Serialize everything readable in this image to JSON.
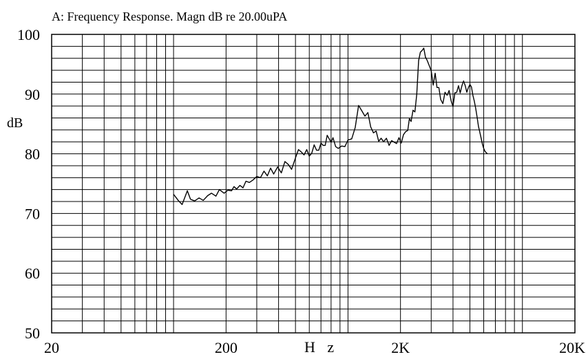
{
  "chart_data": {
    "type": "line",
    "title": "A: Frequency Response. Magn dB re 20.00uPA",
    "xlabel": "H z",
    "ylabel": "dB",
    "xscale": "log",
    "xlim": [
      20,
      20000
    ],
    "ylim": [
      50,
      100
    ],
    "grid": true,
    "x_tick_labels": [
      {
        "value": 20,
        "label": "20"
      },
      {
        "value": 200,
        "label": "200"
      },
      {
        "value": 2000,
        "label": "2K"
      },
      {
        "value": 20000,
        "label": "20K"
      }
    ],
    "y_tick_labels": [
      {
        "value": 100,
        "label": "100"
      },
      {
        "value": 90,
        "label": "90"
      },
      {
        "value": 80,
        "label": "80"
      },
      {
        "value": 70,
        "label": "70"
      },
      {
        "value": 60,
        "label": "60"
      },
      {
        "value": 50,
        "label": "50"
      }
    ],
    "series": [
      {
        "x": [
          100,
          107,
          112,
          120,
          125,
          132,
          140,
          148,
          157,
          165,
          175,
          183,
          195,
          205,
          215,
          222,
          230,
          240,
          250,
          260,
          272,
          285,
          300,
          315,
          330,
          345,
          360,
          375,
          395,
          415,
          435,
          455,
          475,
          500,
          520,
          540,
          560,
          580,
          600,
          620,
          640,
          660,
          680,
          700,
          720,
          740,
          760,
          780,
          800,
          820,
          850,
          880,
          920,
          960,
          1000,
          1050,
          1100,
          1150,
          1200,
          1250,
          1300,
          1350,
          1400,
          1450,
          1500,
          1550,
          1600,
          1660,
          1720,
          1780,
          1850,
          1900,
          1960,
          2020,
          2080,
          2140,
          2200,
          2250,
          2300,
          2360,
          2420,
          2480,
          2540,
          2600,
          2660,
          2720,
          2780,
          2850,
          2920,
          3000,
          3080,
          3160,
          3240,
          3320,
          3400,
          3500,
          3600,
          3700,
          3800,
          3900,
          4000,
          4100,
          4200,
          4300,
          4400,
          4500,
          4600,
          4700,
          4800,
          4900,
          5000,
          5100,
          5200,
          5300,
          5400,
          5500,
          5600,
          5700,
          5800,
          5900,
          6000,
          6100,
          6200,
          6300
        ],
        "y": [
          73.2,
          72.1,
          71.5,
          73.8,
          72.4,
          72.1,
          72.6,
          72.2,
          73.0,
          73.4,
          72.9,
          74.0,
          73.4,
          73.9,
          73.8,
          74.5,
          74.1,
          74.7,
          74.3,
          75.4,
          75.2,
          75.6,
          76.2,
          76.0,
          77.1,
          76.3,
          77.6,
          76.6,
          77.8,
          76.8,
          78.7,
          78.2,
          77.4,
          79.3,
          80.7,
          80.3,
          79.8,
          80.7,
          79.6,
          80.1,
          81.5,
          80.6,
          80.6,
          81.8,
          81.4,
          81.4,
          83.1,
          82.5,
          81.9,
          82.7,
          81.2,
          80.9,
          81.3,
          81.2,
          82.3,
          82.5,
          84.4,
          88.1,
          87.2,
          86.3,
          86.9,
          84.5,
          83.5,
          83.8,
          82.1,
          82.6,
          82.0,
          82.6,
          81.4,
          82.2,
          81.9,
          81.7,
          82.7,
          81.8,
          83.2,
          83.7,
          83.9,
          85.9,
          85.4,
          87.3,
          87.0,
          90.0,
          95.6,
          97.0,
          97.3,
          97.7,
          96.2,
          95.6,
          94.8,
          93.9,
          91.5,
          93.5,
          91.1,
          91.1,
          89.1,
          88.4,
          90.3,
          89.8,
          90.6,
          88.9,
          87.9,
          90.2,
          90.3,
          91.4,
          90.2,
          91.4,
          92.2,
          91.4,
          90.3,
          91.1,
          91.6,
          91.2,
          89.8,
          88.8,
          87.6,
          86.1,
          84.6,
          83.6,
          82.6,
          81.6,
          80.9,
          80.4,
          80.2,
          80.0
        ]
      }
    ]
  }
}
